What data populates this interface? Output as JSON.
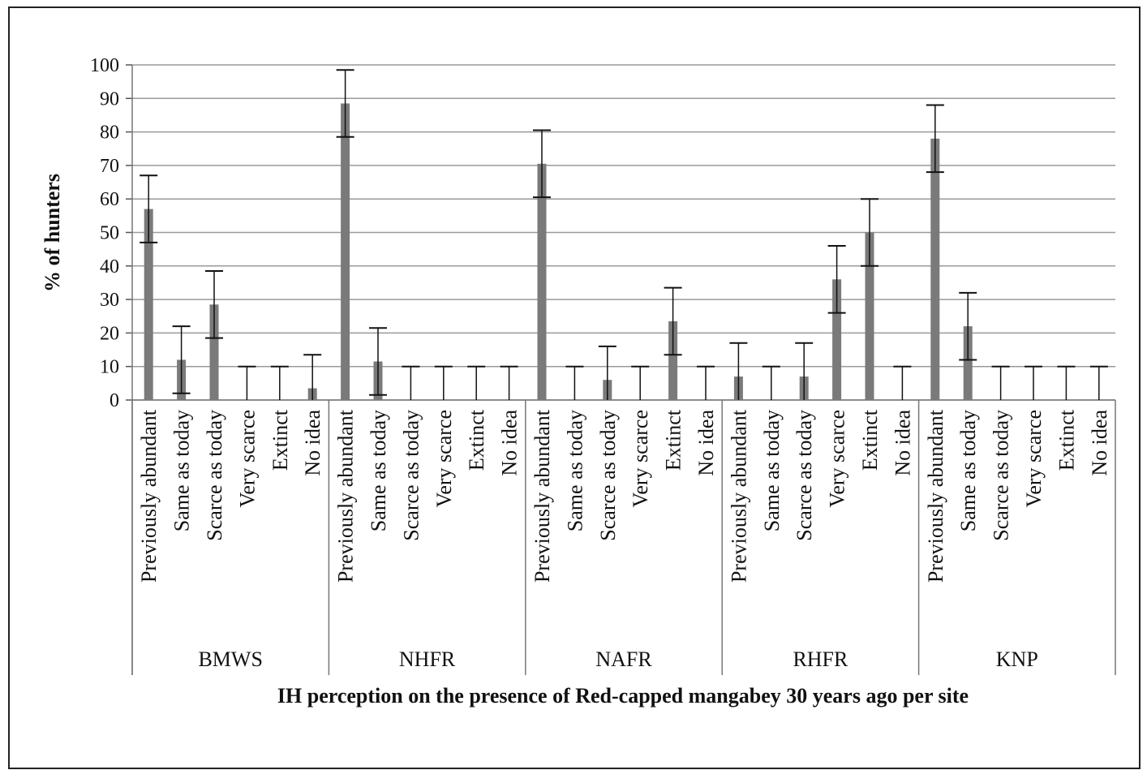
{
  "chart_data": {
    "type": "bar",
    "title": "",
    "xlabel": "IH perception on the presence of Red-capped mangabey 30 years ago per site",
    "ylabel": "% of hunters",
    "ylim": [
      0,
      100
    ],
    "yticks": [
      0,
      10,
      20,
      30,
      40,
      50,
      60,
      70,
      80,
      90,
      100
    ],
    "grid": "horizontal",
    "error_bar": 10,
    "bar_color": "#7a7a7a",
    "categories": [
      "Previously abundant",
      "Same as today",
      "Scarce as today",
      "Very scarce",
      "Extinct",
      "No idea"
    ],
    "groups": [
      {
        "name": "BMWS",
        "values": [
          57,
          12,
          28.5,
          0,
          0,
          3.5
        ]
      },
      {
        "name": "NHFR",
        "values": [
          88.5,
          11.5,
          0,
          0,
          0,
          0
        ]
      },
      {
        "name": "NAFR",
        "values": [
          70.5,
          0,
          6,
          0,
          23.5,
          0
        ]
      },
      {
        "name": "RHFR",
        "values": [
          7,
          0,
          7,
          36,
          50,
          0
        ]
      },
      {
        "name": "KNP",
        "values": [
          78,
          22,
          0,
          0,
          0,
          0
        ]
      }
    ]
  }
}
